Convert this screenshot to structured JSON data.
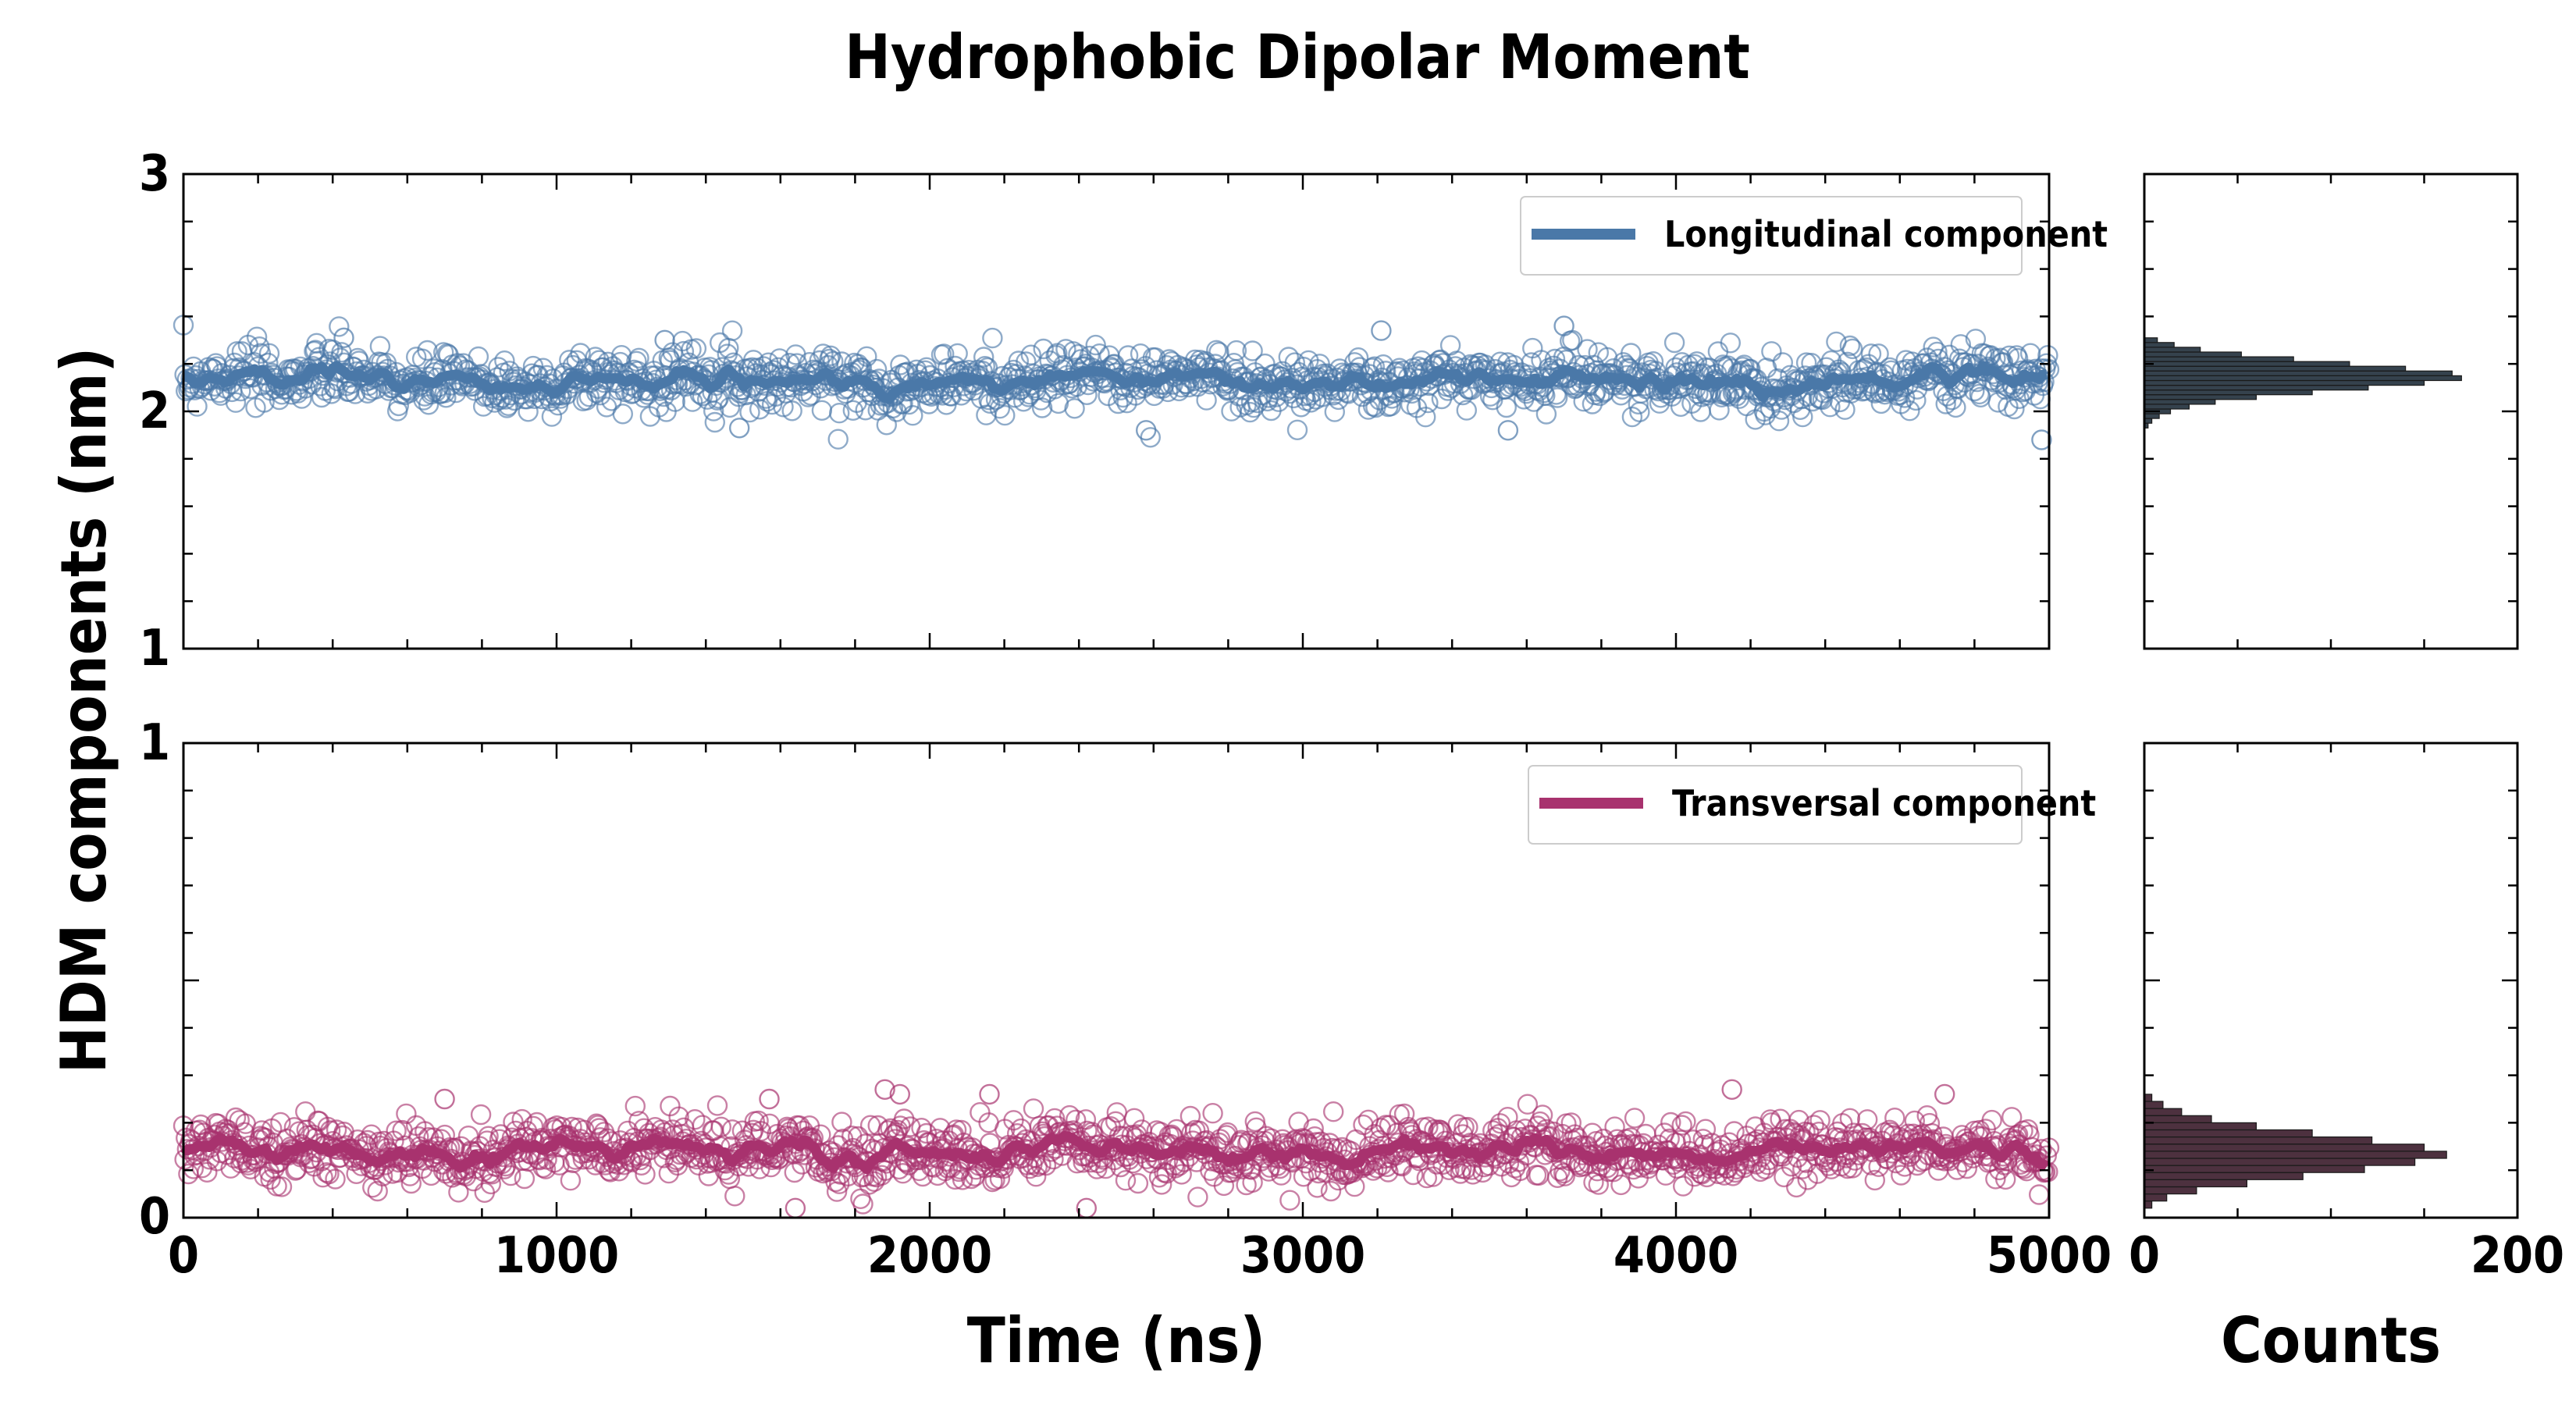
{
  "chart_data": {
    "type": "scatter",
    "title": "Hydrophobic Dipolar Moment",
    "ylabel": "HDM components (nm)",
    "xlabel": "Time (ns)",
    "hist_xlabel": "Counts",
    "xlim": [
      0,
      5000
    ],
    "xticks": [
      "0",
      "1000",
      "2000",
      "3000",
      "4000",
      "5000"
    ],
    "hist_xlim": [
      0,
      200
    ],
    "hist_xticks": [
      "0",
      "200"
    ],
    "panels": [
      {
        "name": "longitudinal",
        "legend": "Longitudinal component",
        "color": "#4a78a8",
        "ylim": [
          1,
          3
        ],
        "yticks": [
          "1",
          "2",
          "3"
        ],
        "mean": 2.13,
        "spread": 0.075,
        "outliers": [
          [
            430,
            2.31
          ],
          [
            1290,
            2.3
          ],
          [
            3210,
            2.34
          ],
          [
            3700,
            2.36
          ],
          [
            1490,
            1.93
          ],
          [
            2580,
            1.92
          ],
          [
            3550,
            1.92
          ],
          [
            4980,
            1.88
          ]
        ],
        "hist": {
          "bin_edges": [
            1.93,
            1.95,
            1.97,
            1.99,
            2.01,
            2.03,
            2.05,
            2.07,
            2.09,
            2.11,
            2.13,
            2.15,
            2.17,
            2.19,
            2.21,
            2.23,
            2.25,
            2.27,
            2.29,
            2.31
          ],
          "counts": [
            2,
            4,
            8,
            14,
            24,
            38,
            60,
            90,
            120,
            150,
            170,
            165,
            140,
            110,
            80,
            52,
            30,
            16,
            7
          ]
        }
      },
      {
        "name": "transversal",
        "legend": "Transversal component",
        "color": "#a8326e",
        "ylim": [
          0,
          1
        ],
        "yticks": [
          "0",
          "1"
        ],
        "mean": 0.14,
        "spread": 0.04,
        "outliers": [
          [
            1880,
            0.27
          ],
          [
            1920,
            0.26
          ],
          [
            2160,
            0.26
          ],
          [
            4150,
            0.27
          ],
          [
            4720,
            0.26
          ],
          [
            1570,
            0.25
          ],
          [
            700,
            0.25
          ],
          [
            2420,
            0.02
          ],
          [
            1640,
            0.02
          ]
        ],
        "hist": {
          "bin_edges": [
            0.02,
            0.035,
            0.05,
            0.065,
            0.08,
            0.095,
            0.11,
            0.125,
            0.14,
            0.155,
            0.17,
            0.185,
            0.2,
            0.215,
            0.23,
            0.245,
            0.26
          ],
          "counts": [
            4,
            12,
            28,
            55,
            85,
            118,
            145,
            162,
            150,
            122,
            90,
            60,
            36,
            20,
            10,
            4
          ]
        }
      }
    ],
    "n_points": 1500,
    "noise_seed": 7
  }
}
